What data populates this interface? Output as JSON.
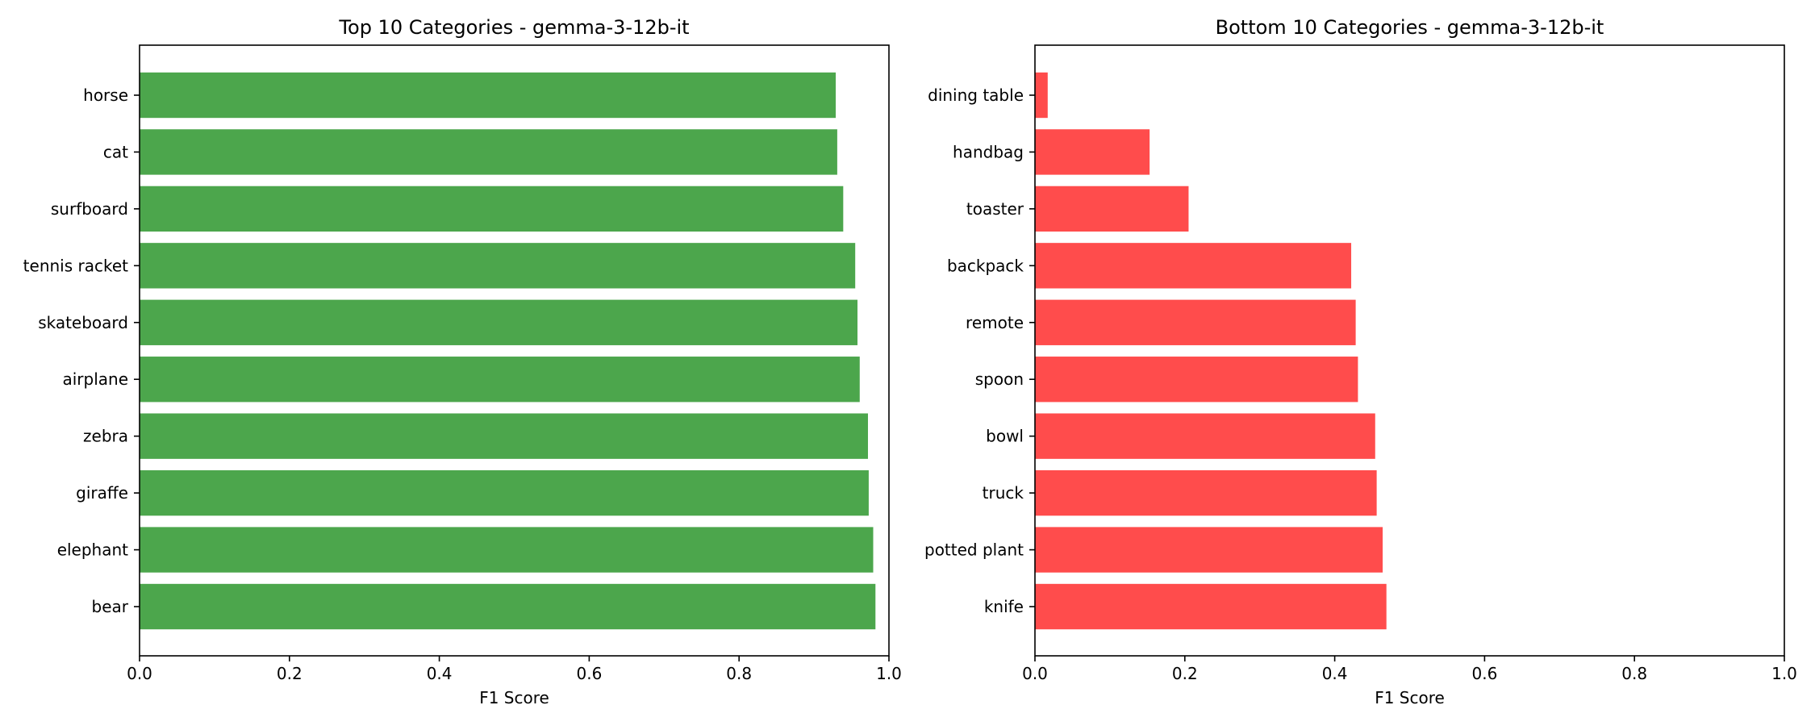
{
  "chart_data": [
    {
      "type": "bar",
      "orientation": "horizontal",
      "title": "Top 10 Categories - gemma-3-12b-it",
      "xlabel": "F1 Score",
      "ylabel": "",
      "xlim": [
        0,
        1.0
      ],
      "xticks": [
        "0.0",
        "0.2",
        "0.4",
        "0.6",
        "0.8",
        "1.0"
      ],
      "color": "#4ca64c",
      "grid": false,
      "categories": [
        "horse",
        "cat",
        "surfboard",
        "tennis racket",
        "skateboard",
        "airplane",
        "zebra",
        "giraffe",
        "elephant",
        "bear"
      ],
      "values": [
        0.929,
        0.931,
        0.939,
        0.955,
        0.958,
        0.961,
        0.972,
        0.973,
        0.979,
        0.982
      ]
    },
    {
      "type": "bar",
      "orientation": "horizontal",
      "title": "Bottom 10 Categories - gemma-3-12b-it",
      "xlabel": "F1 Score",
      "ylabel": "",
      "xlim": [
        0,
        1.0
      ],
      "xticks": [
        "0.0",
        "0.2",
        "0.4",
        "0.6",
        "0.8",
        "1.0"
      ],
      "color": "#ff4c4c",
      "grid": false,
      "categories": [
        "dining table",
        "handbag",
        "toaster",
        "backpack",
        "remote",
        "spoon",
        "bowl",
        "truck",
        "potted plant",
        "knife"
      ],
      "values": [
        0.017,
        0.153,
        0.205,
        0.422,
        0.428,
        0.431,
        0.454,
        0.456,
        0.464,
        0.469
      ]
    }
  ]
}
